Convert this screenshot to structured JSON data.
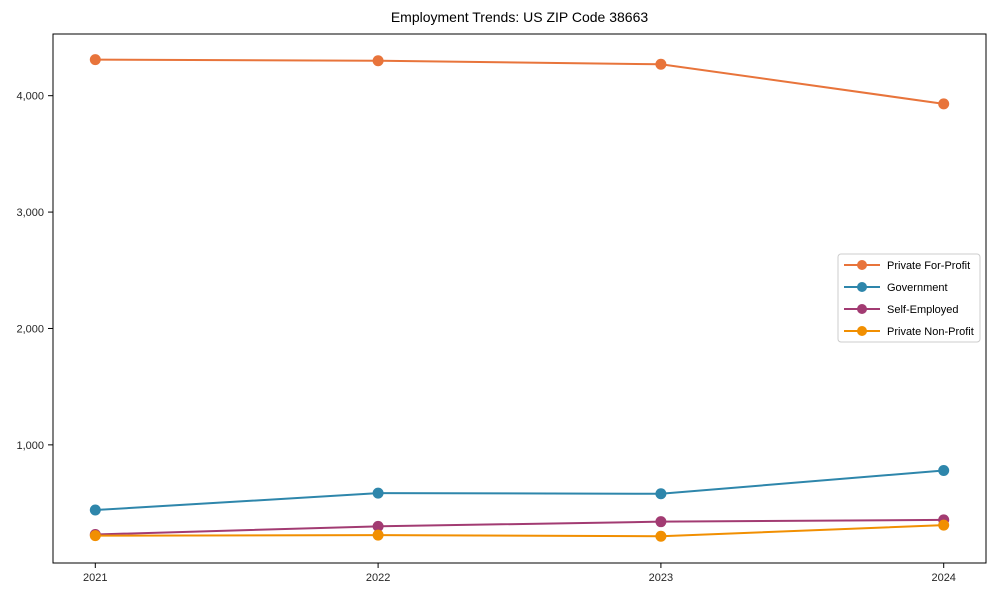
{
  "page": {
    "background": "#ffffff"
  },
  "chart_data": {
    "type": "line",
    "title": "Employment Trends: US ZIP Code 38663",
    "categories": [
      "2021",
      "2022",
      "2023",
      "2024"
    ],
    "series": [
      {
        "name": "Private For-Profit",
        "color": "#E8743B",
        "values": [
          4310,
          4300,
          4270,
          3930
        ]
      },
      {
        "name": "Government",
        "color": "#2E86AB",
        "values": [
          440,
          585,
          580,
          780
        ]
      },
      {
        "name": "Self-Employed",
        "color": "#A23B72",
        "values": [
          230,
          300,
          340,
          355
        ]
      },
      {
        "name": "Private Non-Profit",
        "color": "#F18F01",
        "values": [
          220,
          225,
          215,
          310
        ]
      }
    ],
    "xlabel": "",
    "ylabel": "",
    "y_ticks": [
      1000,
      2000,
      3000,
      4000
    ],
    "y_tick_labels": [
      "1,000",
      "2,000",
      "3,000",
      "4,000"
    ],
    "ylim": [
      -15,
      4530
    ],
    "grid": false,
    "legend_position": "center-right",
    "marker": "circle",
    "line_width": 2,
    "marker_radius": 5.5,
    "spine_color": "#000000",
    "tick_label_color": "#262626",
    "legend_border_color": "#cccccc",
    "legend_background": "#ffffff"
  }
}
